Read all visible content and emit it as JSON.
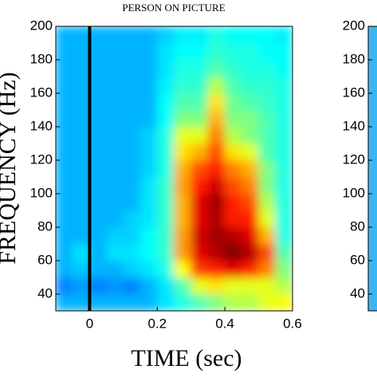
{
  "chart_data": [
    {
      "type": "heatmap",
      "title": "PERSON ON PICTURE",
      "x_label": "TIME (sec)",
      "y_label": "FREQUENCY (Hz)",
      "xlim": [
        -0.1,
        0.6
      ],
      "xticks": [
        0,
        0.2,
        0.4,
        0.6
      ],
      "ylim": [
        30,
        200
      ],
      "yticks": [
        40,
        60,
        80,
        100,
        120,
        140,
        160,
        180,
        200
      ],
      "marker_x": 0,
      "xbins": [
        -0.1,
        -0.05,
        0,
        0.05,
        0.1,
        0.15,
        0.2,
        0.25,
        0.3,
        0.35,
        0.4,
        0.45,
        0.5,
        0.55,
        0.6
      ],
      "ybins": [
        30,
        40,
        50,
        60,
        70,
        80,
        90,
        100,
        110,
        120,
        130,
        140,
        150,
        160,
        170,
        180,
        190,
        200
      ],
      "zlim": [
        0,
        1
      ],
      "z": [
        [
          0.3,
          0.3,
          0.3,
          0.3,
          0.3,
          0.3,
          0.35,
          0.4,
          0.45,
          0.5,
          0.55,
          0.55,
          0.6,
          0.62
        ],
        [
          0.25,
          0.28,
          0.25,
          0.27,
          0.25,
          0.3,
          0.35,
          0.45,
          0.6,
          0.65,
          0.6,
          0.6,
          0.6,
          0.55
        ],
        [
          0.3,
          0.32,
          0.3,
          0.3,
          0.33,
          0.35,
          0.4,
          0.62,
          0.82,
          0.85,
          0.9,
          0.85,
          0.75,
          0.5
        ],
        [
          0.3,
          0.35,
          0.3,
          0.35,
          0.35,
          0.38,
          0.42,
          0.72,
          0.9,
          0.95,
          1.0,
          0.95,
          0.8,
          0.45
        ],
        [
          0.3,
          0.3,
          0.3,
          0.33,
          0.33,
          0.38,
          0.42,
          0.72,
          0.92,
          0.97,
          0.95,
          0.9,
          0.7,
          0.4
        ],
        [
          0.3,
          0.3,
          0.3,
          0.3,
          0.33,
          0.35,
          0.42,
          0.7,
          0.9,
          0.95,
          0.85,
          0.85,
          0.6,
          0.4
        ],
        [
          0.3,
          0.3,
          0.3,
          0.3,
          0.3,
          0.35,
          0.42,
          0.7,
          0.9,
          0.97,
          0.85,
          0.8,
          0.55,
          0.4
        ],
        [
          0.3,
          0.3,
          0.3,
          0.3,
          0.3,
          0.35,
          0.42,
          0.72,
          0.85,
          0.92,
          0.8,
          0.75,
          0.5,
          0.4
        ],
        [
          0.3,
          0.3,
          0.3,
          0.3,
          0.3,
          0.33,
          0.4,
          0.7,
          0.8,
          0.85,
          0.75,
          0.7,
          0.5,
          0.4
        ],
        [
          0.3,
          0.3,
          0.3,
          0.3,
          0.3,
          0.33,
          0.4,
          0.65,
          0.7,
          0.8,
          0.65,
          0.6,
          0.45,
          0.4
        ],
        [
          0.3,
          0.3,
          0.3,
          0.3,
          0.3,
          0.33,
          0.4,
          0.6,
          0.6,
          0.75,
          0.55,
          0.5,
          0.45,
          0.4
        ],
        [
          0.3,
          0.3,
          0.3,
          0.3,
          0.3,
          0.3,
          0.38,
          0.5,
          0.5,
          0.7,
          0.5,
          0.5,
          0.45,
          0.4
        ],
        [
          0.3,
          0.3,
          0.3,
          0.3,
          0.3,
          0.3,
          0.38,
          0.45,
          0.45,
          0.65,
          0.48,
          0.45,
          0.43,
          0.4
        ],
        [
          0.3,
          0.3,
          0.3,
          0.3,
          0.3,
          0.3,
          0.36,
          0.42,
          0.42,
          0.55,
          0.45,
          0.42,
          0.42,
          0.4
        ],
        [
          0.3,
          0.3,
          0.3,
          0.3,
          0.3,
          0.3,
          0.35,
          0.4,
          0.4,
          0.45,
          0.42,
          0.4,
          0.4,
          0.38
        ],
        [
          0.3,
          0.3,
          0.3,
          0.3,
          0.3,
          0.3,
          0.35,
          0.38,
          0.38,
          0.42,
          0.4,
          0.4,
          0.38,
          0.38
        ],
        [
          0.3,
          0.3,
          0.3,
          0.3,
          0.3,
          0.3,
          0.33,
          0.36,
          0.36,
          0.4,
          0.38,
          0.38,
          0.38,
          0.36
        ]
      ]
    },
    {
      "type": "heatmap",
      "ylim": [
        30,
        200
      ],
      "yticks": [
        40,
        60,
        80,
        100,
        120,
        140,
        160,
        180,
        200
      ]
    }
  ]
}
